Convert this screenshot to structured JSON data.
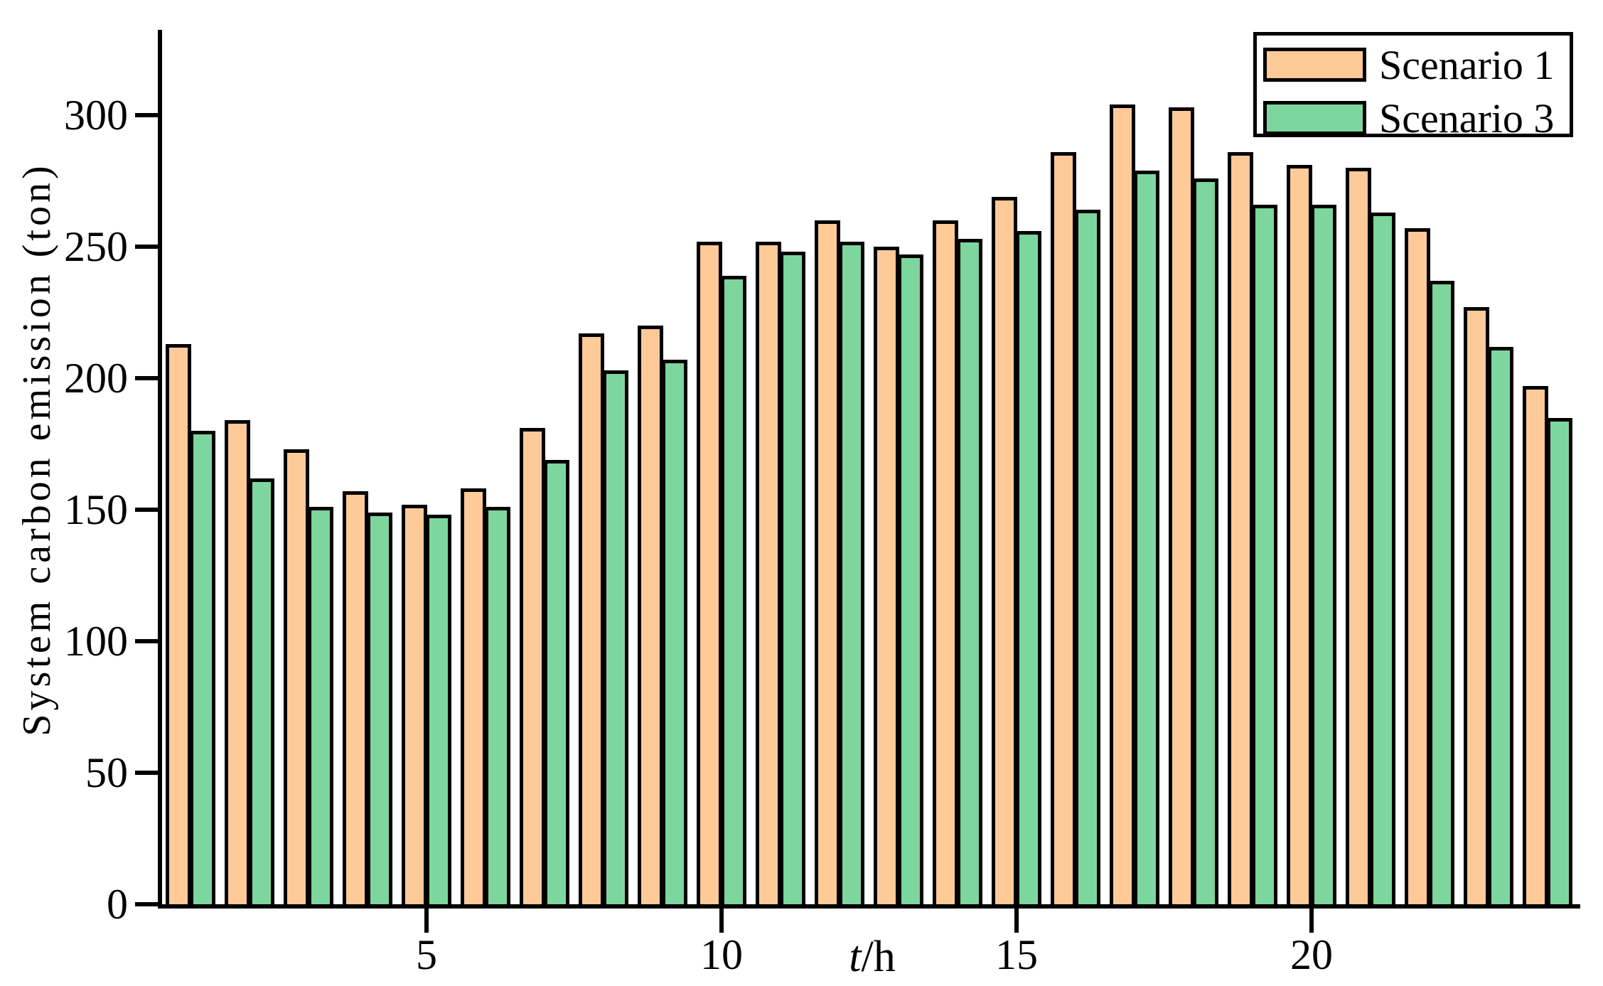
{
  "chart_data": {
    "type": "bar",
    "title": "",
    "xlabel_parts": {
      "italic": "t",
      "normal": "/h"
    },
    "ylabel": "System carbon emission (ton)",
    "categories": [
      1,
      2,
      3,
      4,
      5,
      6,
      7,
      8,
      9,
      10,
      11,
      12,
      13,
      14,
      15,
      16,
      17,
      18,
      19,
      20,
      21,
      22,
      23,
      24
    ],
    "series": [
      {
        "name": "Scenario 1",
        "color": "#FDCA98",
        "values": [
          213,
          184,
          173,
          157,
          152,
          158,
          181,
          217,
          220,
          252,
          252,
          260,
          250,
          260,
          269,
          286,
          304,
          303,
          286,
          281,
          280,
          257,
          227,
          197
        ]
      },
      {
        "name": "Scenario 3",
        "color": "#7DD69D",
        "values": [
          180,
          162,
          151,
          149,
          148,
          151,
          169,
          203,
          207,
          239,
          248,
          252,
          247,
          253,
          256,
          264,
          279,
          276,
          266,
          266,
          263,
          237,
          212,
          185
        ]
      }
    ],
    "ylim": [
      0,
      325
    ],
    "yticks": [
      0,
      50,
      100,
      150,
      200,
      250,
      300
    ],
    "xticks": [
      5,
      10,
      15,
      20
    ],
    "grid": false,
    "legend_position": "top-right",
    "bar_border_color": "#000000",
    "axis_color": "#000000"
  }
}
